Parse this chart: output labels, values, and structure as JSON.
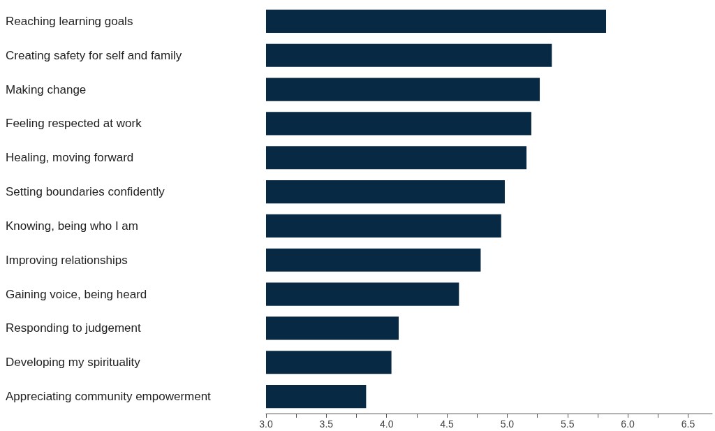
{
  "chart_data": {
    "type": "bar",
    "orientation": "horizontal",
    "categories": [
      "Reaching learning goals",
      "Creating safety for self and family",
      "Making change",
      "Feeling respected at work",
      "Healing, moving forward",
      "Setting boundaries confidently",
      "Knowing, being who I am",
      "Improving relationships",
      "Gaining voice, being heard",
      "Responding to judgement",
      "Developing my spirituality",
      "Appreciating community empowerment"
    ],
    "values": [
      5.82,
      5.37,
      5.27,
      5.2,
      5.16,
      4.98,
      4.95,
      4.78,
      4.6,
      4.1,
      4.04,
      3.83
    ],
    "color": "#072944",
    "xlim": [
      3,
      6.7
    ],
    "xticks": [
      {
        "value": 3,
        "label": "3.0"
      },
      {
        "value": 3.25,
        "label": null
      },
      {
        "value": 3.5,
        "label": "3.5"
      },
      {
        "value": 3.75,
        "label": null
      },
      {
        "value": 4,
        "label": "4.0"
      },
      {
        "value": 4.25,
        "label": null
      },
      {
        "value": 4.5,
        "label": "4.5"
      },
      {
        "value": 4.75,
        "label": null
      },
      {
        "value": 5,
        "label": "5.0"
      },
      {
        "value": 5.25,
        "label": null
      },
      {
        "value": 5.5,
        "label": "5.5"
      },
      {
        "value": 5.75,
        "label": null
      },
      {
        "value": 6,
        "label": "6.0"
      },
      {
        "value": 6.25,
        "label": null
      },
      {
        "value": 6.5,
        "label": "6.5"
      }
    ],
    "grid": false
  }
}
